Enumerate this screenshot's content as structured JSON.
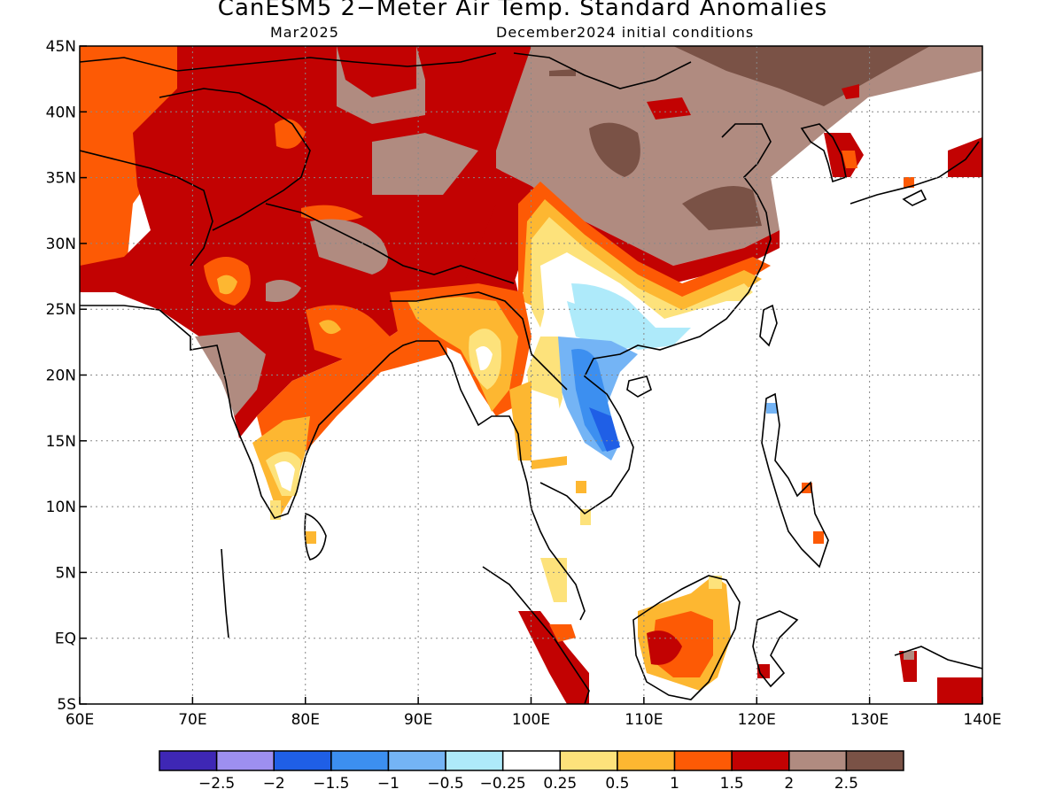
{
  "title": "CanESM5 2−Meter Air Temp. Standard Anomalies",
  "subtitle_left": "Mar2025",
  "subtitle_right": "December2024 initial conditions",
  "map": {
    "lon_range": [
      60,
      140
    ],
    "lat_range": [
      -5,
      45
    ],
    "grid": true,
    "x_ticks": [
      "60E",
      "70E",
      "80E",
      "90E",
      "100E",
      "110E",
      "120E",
      "130E",
      "140E"
    ],
    "y_ticks": [
      "45N",
      "40N",
      "35N",
      "30N",
      "25N",
      "20N",
      "15N",
      "10N",
      "5N",
      "EQ",
      "5S"
    ]
  },
  "colorbar": {
    "labels": [
      "−2.5",
      "−2",
      "−1.5",
      "−1",
      "−0.5",
      "−0.25",
      "0.25",
      "0.5",
      "1",
      "1.5",
      "2",
      "2.5"
    ],
    "colors": [
      "#3e27b5",
      "#9d8ff0",
      "#1f5fe6",
      "#3c8ff0",
      "#74b4f5",
      "#aeeafa",
      "#ffffff",
      "#fde27b",
      "#fdb731",
      "#fd5a05",
      "#c20202",
      "#b08b80",
      "#7a5246"
    ]
  }
}
